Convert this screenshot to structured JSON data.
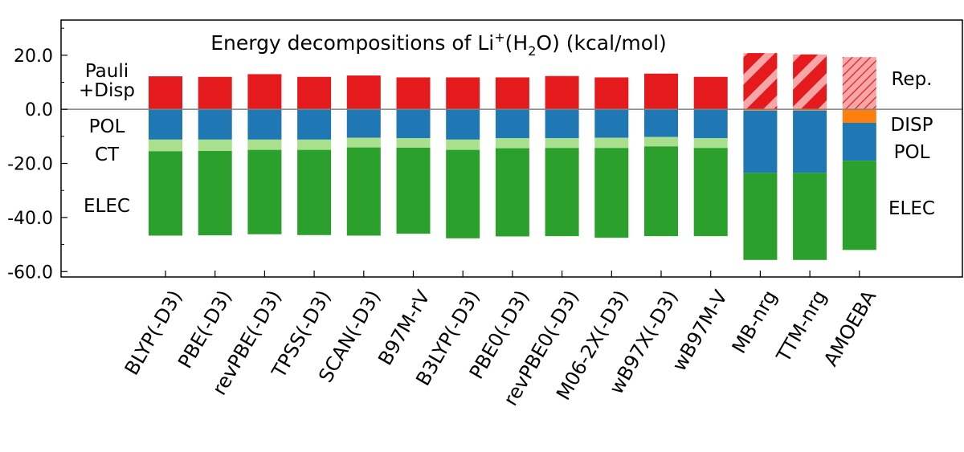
{
  "chart_data": {
    "type": "bar",
    "stacked": true,
    "title": "Energy decompositions of Li⁺(H₂O) (kcal/mol)",
    "title_parts": [
      "Energy decompositions of Li",
      "+",
      "(H",
      "2",
      "O) (kcal/mol)"
    ],
    "ylim": [
      -62,
      33
    ],
    "yticks": [
      20,
      0,
      -20,
      -40,
      -60
    ],
    "ytick_labels": [
      "20.0",
      "0.0",
      "-20.0",
      "-40.0",
      "-60.0"
    ],
    "categories": [
      "BLYP(-D3)",
      "PBE(-D3)",
      "revPBE(-D3)",
      "TPSS(-D3)",
      "SCAN(-D3)",
      "B97M-rV",
      "B3LYP(-D3)",
      "PBE0(-D3)",
      "revPBE0(-D3)",
      "M06-2X(-D3)",
      "wB97X(-D3)",
      "wB97M-V",
      "MB-nrg",
      "TTM-nrg",
      "AMOEBA"
    ],
    "left_labels": [
      "Pauli",
      "+Disp",
      "POL",
      "CT",
      "ELEC"
    ],
    "right_labels": [
      "Rep.",
      "DISP",
      "POL",
      "ELEC"
    ],
    "colors": {
      "pauli": "#e41a1c",
      "pol": "#1f77b4",
      "ct": "#a8e08e",
      "elec": "#2ca02c",
      "rep_hatch": "#f6a6a6",
      "disp": "#ff7f0e",
      "zero_line": "#808080"
    },
    "series": [
      {
        "name": "Pauli+Disp",
        "values": [
          12.2,
          12.0,
          13.0,
          12.0,
          12.5,
          11.8,
          11.8,
          11.8,
          12.3,
          11.8,
          13.2,
          12.0,
          null,
          null,
          null
        ]
      },
      {
        "name": "POL",
        "values": [
          -11.2,
          -11.2,
          -11.2,
          -11.2,
          -10.5,
          -10.7,
          -11.2,
          -10.7,
          -10.7,
          -10.5,
          -10.2,
          -10.7,
          -23.0,
          -23.0,
          -14.0
        ]
      },
      {
        "name": "CT",
        "values": [
          -4.3,
          -4.2,
          -3.8,
          -3.8,
          -3.6,
          -3.5,
          -3.8,
          -3.7,
          -3.6,
          -3.8,
          -3.5,
          -3.6,
          null,
          null,
          null
        ]
      },
      {
        "name": "ELEC",
        "values": [
          -31.2,
          -31.2,
          -31.2,
          -31.5,
          -32.6,
          -31.8,
          -32.7,
          -32.6,
          -32.6,
          -33.2,
          -33.2,
          -32.6,
          -32.2,
          -32.2,
          -33.0
        ]
      },
      {
        "name": "Rep.",
        "values": [
          null,
          null,
          null,
          null,
          null,
          null,
          null,
          null,
          null,
          null,
          null,
          null,
          20.8,
          20.3,
          19.3
        ]
      },
      {
        "name": "DISP",
        "values": [
          null,
          null,
          null,
          null,
          null,
          null,
          null,
          null,
          null,
          null,
          null,
          null,
          -0.5,
          -0.5,
          -5.0
        ]
      }
    ]
  }
}
